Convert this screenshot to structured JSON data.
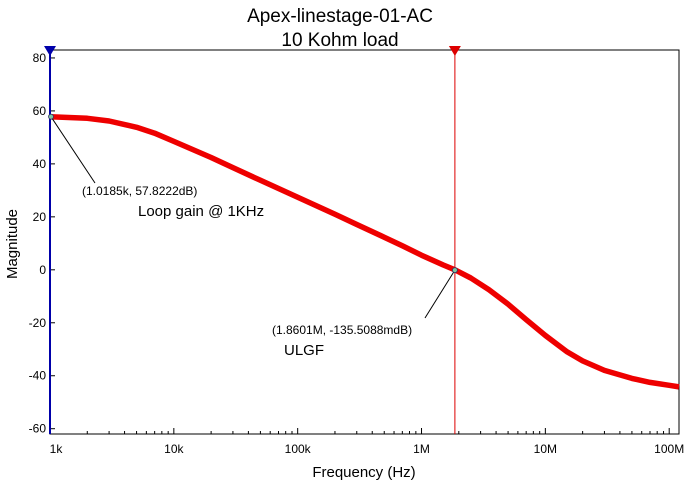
{
  "chart_data": {
    "type": "line",
    "title": "Apex-linestage-01-AC",
    "subtitle": "10 Kohm load",
    "xlabel": "Frequency (Hz)",
    "ylabel": "Magnitude",
    "xscale": "log",
    "xlim": [
      1000,
      120000000
    ],
    "ylim": [
      -62,
      83
    ],
    "x_ticks": [
      {
        "value": 1000,
        "label": "1k"
      },
      {
        "value": 10000,
        "label": "10k"
      },
      {
        "value": 100000,
        "label": "100k"
      },
      {
        "value": 1000000,
        "label": "1M"
      },
      {
        "value": 10000000,
        "label": "10M"
      },
      {
        "value": 100000000,
        "label": "100M"
      }
    ],
    "y_ticks": [
      {
        "value": 80,
        "label": "80"
      },
      {
        "value": 60,
        "label": "60"
      },
      {
        "value": 40,
        "label": "40"
      },
      {
        "value": 20,
        "label": "20"
      },
      {
        "value": 0,
        "label": "0"
      },
      {
        "value": -20,
        "label": "-20"
      },
      {
        "value": -40,
        "label": "-40"
      },
      {
        "value": -60,
        "label": "-60"
      }
    ],
    "grid": false,
    "series": [
      {
        "color": "#ee0000",
        "x": [
          1000,
          2000,
          3000,
          5000,
          7000,
          10000,
          20000,
          30000,
          50000,
          70000,
          100000,
          200000,
          300000,
          500000,
          700000,
          1000000,
          1500000,
          1860100,
          2500000,
          3500000,
          5000000,
          7000000,
          10000000,
          15000000,
          20000000,
          30000000,
          50000000,
          70000000,
          100000000,
          120000000
        ],
        "y": [
          57.8,
          57.2,
          56.2,
          53.8,
          51.6,
          48.5,
          42.4,
          38.6,
          33.8,
          30.7,
          27.4,
          21.0,
          17.1,
          12.3,
          9.1,
          5.5,
          1.8,
          0.0,
          -3.1,
          -7.5,
          -13.0,
          -18.8,
          -24.8,
          -31.0,
          -34.4,
          -38.0,
          -41.0,
          -42.5,
          -43.6,
          -44.2
        ]
      }
    ],
    "cursors": [
      {
        "x": 1000,
        "color": "#0000aa"
      },
      {
        "x": 1860100,
        "color": "#dd0000"
      }
    ],
    "annotations": [
      {
        "x": 1018.5,
        "y": 57.8222,
        "text": "(1.0185k, 57.8222dB)",
        "note": "Loop gain @ 1KHz"
      },
      {
        "x": 1860100,
        "y": -0.1355,
        "text": "(1.8601M, -135.5088mdB)",
        "note": "ULGF"
      }
    ]
  }
}
